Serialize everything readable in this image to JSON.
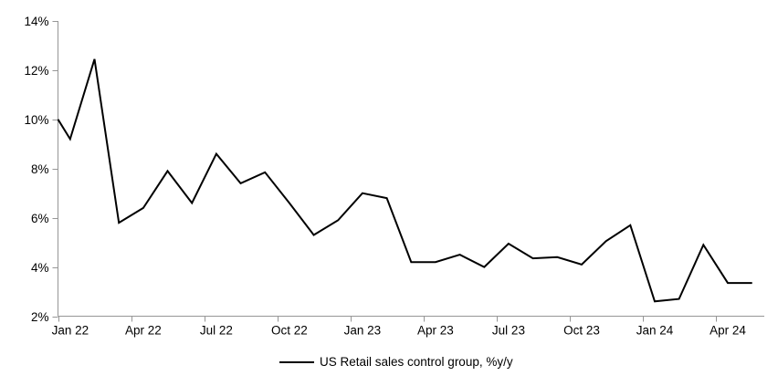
{
  "chart_data": {
    "type": "line",
    "title": "",
    "xlabel": "",
    "ylabel": "",
    "x_monthly": [
      "Jan 22",
      "Feb 22",
      "Mar 22",
      "Apr 22",
      "May 22",
      "Jun 22",
      "Jul 22",
      "Aug 22",
      "Sep 22",
      "Oct 22",
      "Nov 22",
      "Dec 22",
      "Jan 23",
      "Feb 23",
      "Mar 23",
      "Apr 23",
      "May 23",
      "Jun 23",
      "Jul 23",
      "Aug 23",
      "Sep 23",
      "Oct 23",
      "Nov 23",
      "Dec 23",
      "Jan 24",
      "Feb 24",
      "Mar 24",
      "Apr 24",
      "May 24"
    ],
    "series": [
      {
        "name": "US Retail sales control group, %y/y",
        "values": [
          9.2,
          12.45,
          5.8,
          6.4,
          7.9,
          6.6,
          8.6,
          7.4,
          7.85,
          6.6,
          5.3,
          5.9,
          7.0,
          6.8,
          4.2,
          4.2,
          4.5,
          4.0,
          4.95,
          4.35,
          4.4,
          4.1,
          5.05,
          5.7,
          2.6,
          2.7,
          4.9,
          3.35,
          3.35
        ]
      }
    ],
    "line_start_at_axis_pct": 10.0,
    "ylim": [
      2,
      14
    ],
    "y_ticks": [
      2,
      4,
      6,
      8,
      10,
      12,
      14
    ],
    "y_tick_labels": [
      "2%",
      "4%",
      "6%",
      "8%",
      "10%",
      "12%",
      "14%"
    ],
    "x_tick_labels": [
      "Jan 22",
      "Apr 22",
      "Jul 22",
      "Oct 22",
      "Jan 23",
      "Apr 23",
      "Jul 23",
      "Oct 23",
      "Jan 24",
      "Apr 24"
    ],
    "x_major_tick_every_months": 3,
    "grid": "off",
    "legend_position": "bottom-center",
    "legend": [
      "US Retail sales control group, %y/y"
    ],
    "colors": {
      "line": "#000000",
      "axis": "#969696",
      "text": "#000000",
      "background": "#ffffff"
    }
  }
}
